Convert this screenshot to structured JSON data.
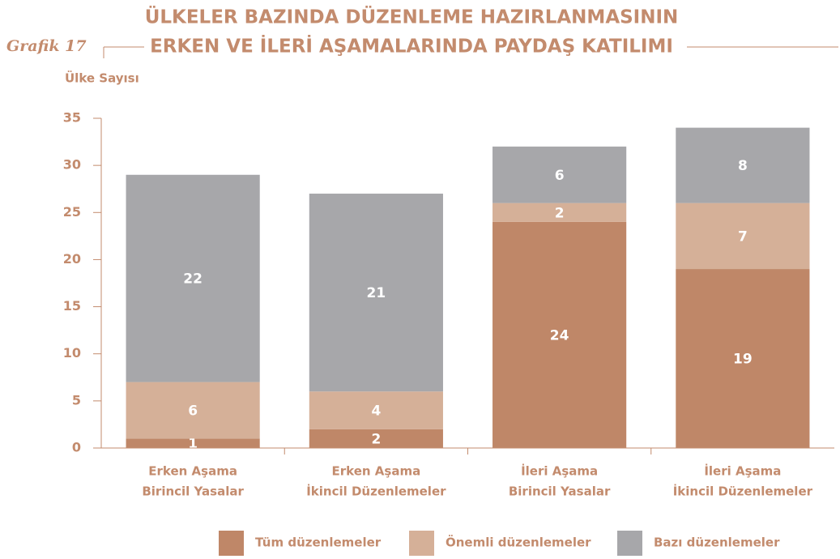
{
  "chart_data": {
    "type": "stacked_bar",
    "label": "Grafik 17",
    "title": [
      "ÜLKELER BAZINDA DÜZENLEME HAZIRLANMASININ",
      "ERKEN VE İLERİ AŞAMALARINDA PAYDAŞ KATILIMI"
    ],
    "y_label": "Ülke Sayısı",
    "categories": [
      [
        "Erken Aşama",
        "Birincil Yasalar"
      ],
      [
        "Erken Aşama",
        "İkincil Düzenlemeler"
      ],
      [
        "İleri Aşama",
        "Birincil Yasalar"
      ],
      [
        "İleri Aşama",
        "İkincil Düzenlemeler"
      ]
    ],
    "series": [
      {
        "name": "Tüm düzenlemeler",
        "color": "#bf8768",
        "values": [
          1,
          2,
          24,
          19
        ]
      },
      {
        "name": "Önemli düzenlemeler",
        "color": "#d5b098",
        "values": [
          6,
          4,
          2,
          7
        ]
      },
      {
        "name": "Bazı düzenlemeler",
        "color": "#a7a7aa",
        "values": [
          22,
          21,
          6,
          8
        ]
      }
    ],
    "ylim": [
      0,
      35
    ],
    "yticks": [
      0,
      5,
      10,
      15,
      20,
      25,
      30,
      35
    ]
  }
}
